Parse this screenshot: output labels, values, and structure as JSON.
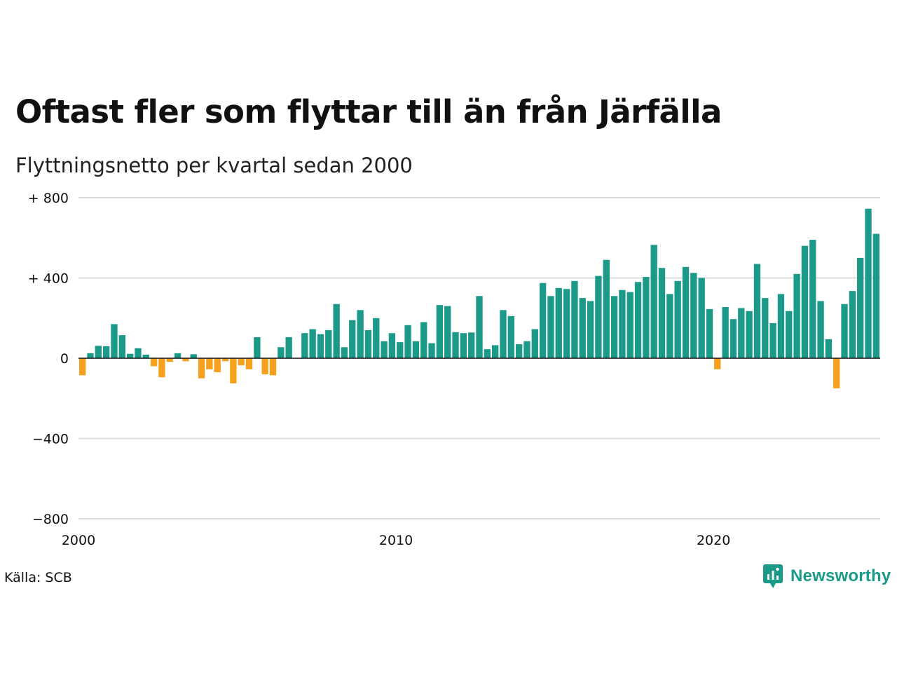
{
  "header": {
    "title": "Oftast fler som flyttar till än från Järfälla",
    "subtitle": "Flyttningsnetto per kvartal sedan 2000"
  },
  "footer": {
    "source": "Källa: SCB",
    "brand": "Newsworthy"
  },
  "colors": {
    "positive": "#1b9a8a",
    "negative": "#f5a11c",
    "grid": "#dddddd",
    "axis": "#111111",
    "text": "#111111"
  },
  "chart_data": {
    "type": "bar",
    "x_start": "2000 Q1",
    "frequency": "quarterly",
    "y_ticks": [
      {
        "value": 800,
        "label": "+ 800"
      },
      {
        "value": 400,
        "label": "+ 400"
      },
      {
        "value": 0,
        "label": "0"
      },
      {
        "value": -400,
        "label": "−400"
      },
      {
        "value": -800,
        "label": "−800"
      }
    ],
    "x_ticks": [
      {
        "year": 2000,
        "label": "2000"
      },
      {
        "year": 2010,
        "label": "2010"
      },
      {
        "year": 2020,
        "label": "2020"
      }
    ],
    "ylim": [
      -800,
      800
    ],
    "values": [
      -85,
      25,
      62,
      60,
      170,
      115,
      22,
      50,
      18,
      -40,
      -95,
      -18,
      25,
      -15,
      20,
      -100,
      -55,
      -70,
      -15,
      -125,
      -35,
      -55,
      105,
      -80,
      -85,
      55,
      105,
      0,
      125,
      145,
      120,
      140,
      270,
      55,
      190,
      240,
      140,
      200,
      85,
      125,
      80,
      165,
      85,
      180,
      75,
      265,
      260,
      130,
      125,
      128,
      310,
      45,
      65,
      240,
      210,
      70,
      85,
      145,
      375,
      310,
      350,
      345,
      385,
      300,
      285,
      410,
      490,
      310,
      340,
      330,
      380,
      405,
      565,
      450,
      320,
      385,
      455,
      425,
      400,
      245,
      -55,
      255,
      195,
      250,
      235,
      470,
      300,
      175,
      320,
      235,
      420,
      560,
      590,
      285,
      95,
      -150,
      270,
      335,
      500,
      745,
      620
    ]
  }
}
